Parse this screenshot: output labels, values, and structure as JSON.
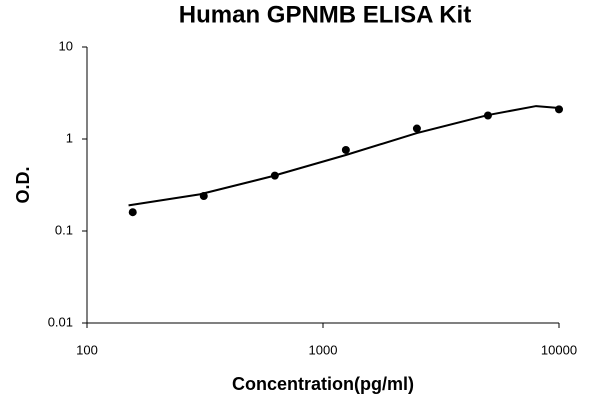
{
  "chart_data": {
    "type": "scatter",
    "title": "Human GPNMB ELISA Kit",
    "x_label": "Concentration(pg/ml)",
    "y_label": "O.D.",
    "x": [
      156.25,
      312.5,
      625,
      1250,
      2500,
      5000,
      10000
    ],
    "values": [
      0.16,
      0.24,
      0.4,
      0.76,
      1.3,
      1.8,
      2.1
    ],
    "color": "#000000",
    "curve": {
      "x": [
        150,
        300,
        600,
        1250,
        2500,
        5000,
        8000,
        10000
      ],
      "values": [
        0.19,
        0.25,
        0.39,
        0.67,
        1.16,
        1.82,
        2.28,
        2.17
      ],
      "color": "#000000"
    },
    "x_log": true,
    "y_log": true,
    "xlim": [
      100,
      10000
    ],
    "xticks": [
      100,
      1000,
      10000
    ],
    "ylim": [
      0.01,
      10
    ],
    "yticks": [
      0.01,
      0.1,
      1,
      10
    ],
    "grid": false
  }
}
